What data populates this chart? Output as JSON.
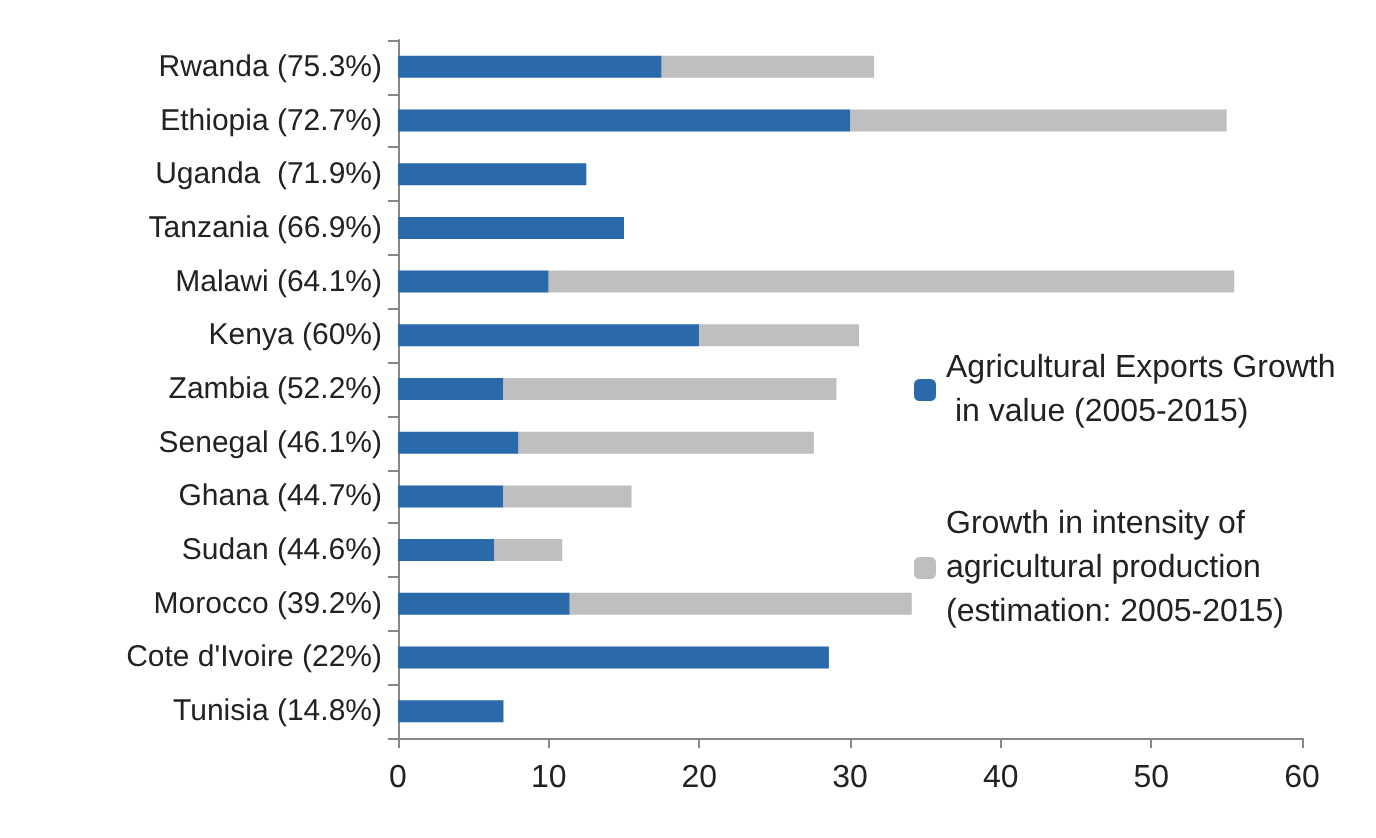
{
  "chart_data": {
    "type": "bar",
    "orientation": "horizontal",
    "stacked": true,
    "categories": [
      "Rwanda (75.3%)",
      "Ethiopia (72.7%)",
      "Uganda  (71.9%)",
      "Tanzania (66.9%)",
      "Malawi (64.1%)",
      "Kenya (60%)",
      "Zambia (52.2%)",
      "Senegal (46.1%)",
      "Ghana (44.7%)",
      "Sudan (44.6%)",
      "Morocco (39.2%)",
      "Cote d'Ivoire (22%)",
      "Tunisia (14.8%)"
    ],
    "series": [
      {
        "name": "Agricultural Exports Growth in value (2005-2015)",
        "color": "#2a6aab",
        "values": [
          17.5,
          30,
          12.5,
          15,
          10,
          20,
          7,
          8,
          7,
          6.4,
          11.4,
          28.6,
          7
        ]
      },
      {
        "name": "Growth in intensity of agricultural production (estimation: 2005-2015)",
        "color": "#bfbfbf",
        "values": [
          14.1,
          25,
          null,
          null,
          45.5,
          10.6,
          22.1,
          19.6,
          8.5,
          4.5,
          22.7,
          null,
          null
        ]
      }
    ],
    "xlim": [
      0,
      60
    ],
    "xticks": [
      0,
      10,
      20,
      30,
      40,
      50,
      60
    ],
    "grid": false,
    "legend": "right"
  }
}
